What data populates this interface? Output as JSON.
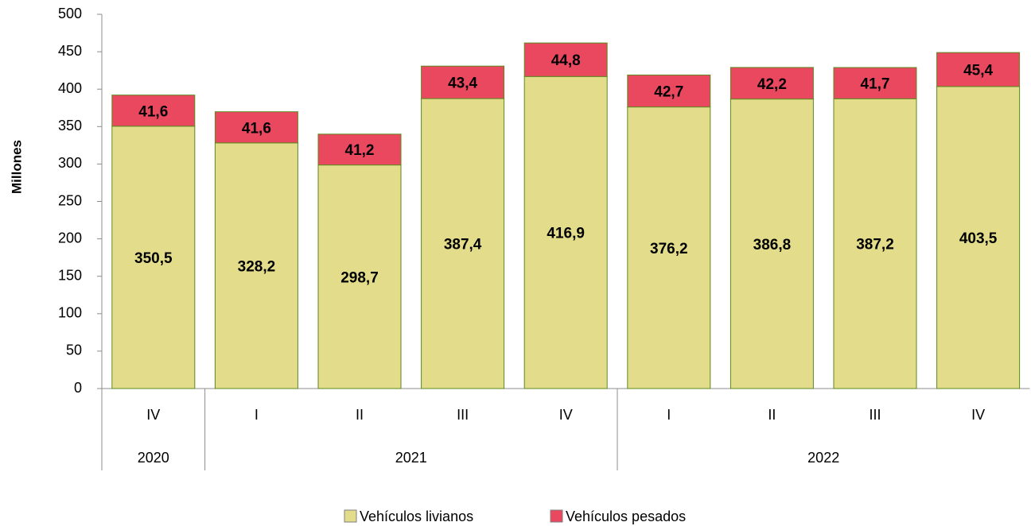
{
  "chart_data": {
    "type": "stacked_bar",
    "y_axis_label": "Millones",
    "categories": [
      "IV",
      "I",
      "II",
      "III",
      "IV",
      "I",
      "II",
      "III",
      "IV"
    ],
    "groups": [
      {
        "label": "2020",
        "span": 1
      },
      {
        "label": "2021",
        "span": 4
      },
      {
        "label": "2022",
        "span": 4
      }
    ],
    "series": [
      {
        "name": "Vehículos livianos",
        "color": "#e3dc8b",
        "stroke": "#5b8a1f",
        "values": [
          350.5,
          328.2,
          298.7,
          387.4,
          416.9,
          376.2,
          386.8,
          387.2,
          403.5
        ],
        "value_labels": [
          "350,5",
          "328,2",
          "298,7",
          "387,4",
          "416,9",
          "376,2",
          "386,8",
          "387,2",
          "403,5"
        ]
      },
      {
        "name": "Vehículos pesados",
        "color": "#e9485f",
        "stroke": "#5b8a1f",
        "values": [
          41.6,
          41.6,
          41.2,
          43.4,
          44.8,
          42.7,
          42.2,
          41.7,
          45.4
        ],
        "value_labels": [
          "41,6",
          "41,6",
          "41,2",
          "43,4",
          "44,8",
          "42,7",
          "42,2",
          "41,7",
          "45,4"
        ]
      }
    ],
    "ylim": [
      0,
      500
    ],
    "yticks": [
      0,
      50,
      100,
      150,
      200,
      250,
      300,
      350,
      400,
      450,
      500
    ],
    "legend": "bottom"
  }
}
